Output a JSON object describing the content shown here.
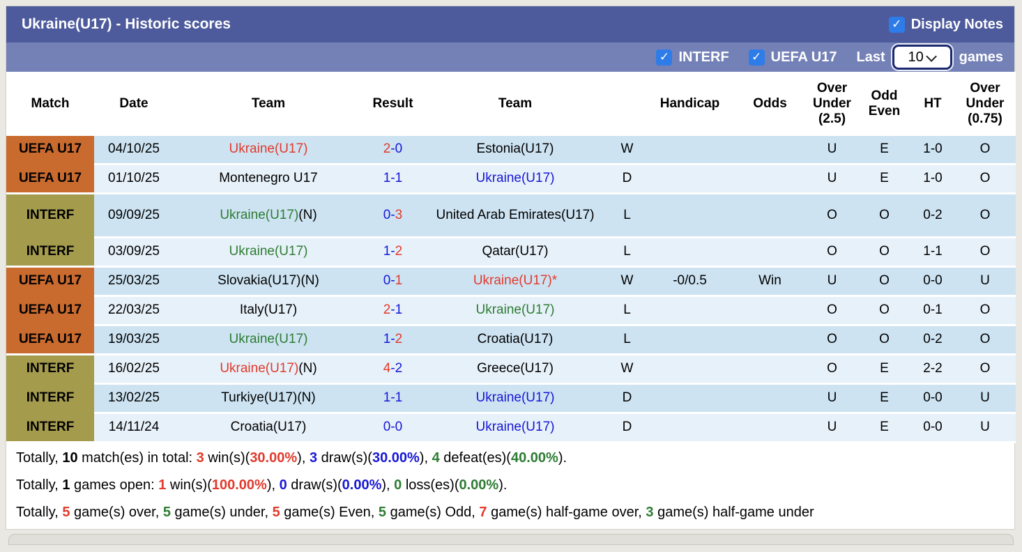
{
  "header": {
    "title": "Ukraine(U17) - Historic scores",
    "display_notes_label": "Display Notes",
    "display_notes_checked": true
  },
  "filter_bar": {
    "checkboxes": [
      {
        "label": "INTERF",
        "checked": true
      },
      {
        "label": "UEFA U17",
        "checked": true
      }
    ],
    "last_label": "Last",
    "games_count": "10",
    "games_label": "games"
  },
  "colors": {
    "title_bar": "#4d5b9c",
    "filter_bar": "#7481b6",
    "checkbox_blue": "#2e7ce8",
    "badge_uefa_orange": "#c96a2e",
    "badge_interf_olive": "#a49b4d",
    "row_dark": "#cde3f2",
    "row_light": "#e7f1f9",
    "win_red": "#e13a2c",
    "draw_blue": "#1717d6",
    "loss_green": "#2e7c33"
  },
  "table": {
    "header_cells": [
      {
        "lines": [
          "Match"
        ]
      },
      {
        "lines": [
          "Date"
        ]
      },
      {
        "lines": [
          "Team"
        ]
      },
      {
        "lines": [
          "Result"
        ]
      },
      {
        "lines": [
          "Team"
        ]
      },
      {
        "lines": [
          ""
        ]
      },
      {
        "lines": [
          "Handicap"
        ]
      },
      {
        "lines": [
          "Odds"
        ]
      },
      {
        "lines": [
          "Over",
          "Under",
          "(2.5)"
        ]
      },
      {
        "lines": [
          "Odd",
          "Even"
        ]
      },
      {
        "lines": [
          "HT"
        ]
      },
      {
        "lines": [
          "Over",
          "Under",
          "(0.75)"
        ]
      }
    ],
    "rows": [
      {
        "badge": {
          "label": "UEFA U17",
          "type": "uefa",
          "join_next": true
        },
        "date": "04/10/25",
        "team1": [
          {
            "text": "Ukraine(U17)",
            "color": "red"
          }
        ],
        "result": [
          {
            "text": "2",
            "color": "red"
          },
          {
            "text": "-0",
            "color": "blue"
          }
        ],
        "team2": [
          {
            "text": "Estonia(U17)",
            "color": "black"
          }
        ],
        "wdl": {
          "text": "W",
          "color": "red"
        },
        "handicap": "",
        "odds": {
          "text": "",
          "color": "red"
        },
        "ou25": {
          "text": "U",
          "color": "green"
        },
        "oddeven": {
          "text": "E",
          "color": "red"
        },
        "ht": "1-0",
        "ou075": {
          "text": "O",
          "color": "red"
        }
      },
      {
        "badge": {
          "label": "UEFA U17",
          "type": "uefa",
          "join_next": false
        },
        "date": "01/10/25",
        "team1": [
          {
            "text": "Montenegro U17",
            "color": "black"
          }
        ],
        "result": [
          {
            "text": "1-1",
            "color": "blue"
          }
        ],
        "team2": [
          {
            "text": "Ukraine(U17)",
            "color": "blue"
          }
        ],
        "wdl": {
          "text": "D",
          "color": "blue"
        },
        "handicap": "",
        "odds": {
          "text": "",
          "color": "red"
        },
        "ou25": {
          "text": "U",
          "color": "green"
        },
        "oddeven": {
          "text": "E",
          "color": "red"
        },
        "ht": "1-0",
        "ou075": {
          "text": "O",
          "color": "red"
        }
      },
      {
        "badge": {
          "label": "INTERF",
          "type": "interf",
          "join_next": true
        },
        "date": "09/09/25",
        "team1": [
          {
            "text": "Ukraine(U17)",
            "color": "green"
          },
          {
            "text": "(N)",
            "color": "black"
          }
        ],
        "result": [
          {
            "text": "0-",
            "color": "blue"
          },
          {
            "text": "3",
            "color": "red"
          }
        ],
        "team2": [
          {
            "text": "United Arab Emirates(U17)",
            "color": "black"
          }
        ],
        "wdl": {
          "text": "L",
          "color": "green"
        },
        "handicap": "",
        "odds": {
          "text": "",
          "color": "red"
        },
        "ou25": {
          "text": "O",
          "color": "red"
        },
        "oddeven": {
          "text": "O",
          "color": "green"
        },
        "ht": "0-2",
        "ou075": {
          "text": "O",
          "color": "red"
        }
      },
      {
        "badge": {
          "label": "INTERF",
          "type": "interf",
          "join_next": false
        },
        "date": "03/09/25",
        "team1": [
          {
            "text": "Ukraine(U17)",
            "color": "green"
          }
        ],
        "result": [
          {
            "text": "1-",
            "color": "blue"
          },
          {
            "text": "2",
            "color": "red"
          }
        ],
        "team2": [
          {
            "text": "Qatar(U17)",
            "color": "black"
          }
        ],
        "wdl": {
          "text": "L",
          "color": "green"
        },
        "handicap": "",
        "odds": {
          "text": "",
          "color": "red"
        },
        "ou25": {
          "text": "O",
          "color": "red"
        },
        "oddeven": {
          "text": "O",
          "color": "green"
        },
        "ht": "1-1",
        "ou075": {
          "text": "O",
          "color": "red"
        }
      },
      {
        "badge": {
          "label": "UEFA U17",
          "type": "uefa",
          "join_next": true
        },
        "date": "25/03/25",
        "team1": [
          {
            "text": "Slovakia(U17)(N)",
            "color": "black"
          }
        ],
        "result": [
          {
            "text": "0-",
            "color": "blue"
          },
          {
            "text": "1",
            "color": "red"
          }
        ],
        "team2": [
          {
            "text": "Ukraine(U17)*",
            "color": "red"
          }
        ],
        "wdl": {
          "text": "W",
          "color": "red"
        },
        "handicap": "-0/0.5",
        "odds": {
          "text": "Win",
          "color": "red"
        },
        "ou25": {
          "text": "U",
          "color": "green"
        },
        "oddeven": {
          "text": "O",
          "color": "green"
        },
        "ht": "0-0",
        "ou075": {
          "text": "U",
          "color": "green"
        }
      },
      {
        "badge": {
          "label": "UEFA U17",
          "type": "uefa",
          "join_next": true
        },
        "date": "22/03/25",
        "team1": [
          {
            "text": "Italy(U17)",
            "color": "black"
          }
        ],
        "result": [
          {
            "text": "2",
            "color": "red"
          },
          {
            "text": "-1",
            "color": "blue"
          }
        ],
        "team2": [
          {
            "text": "Ukraine(U17)",
            "color": "green"
          }
        ],
        "wdl": {
          "text": "L",
          "color": "green"
        },
        "handicap": "",
        "odds": {
          "text": "",
          "color": "red"
        },
        "ou25": {
          "text": "O",
          "color": "red"
        },
        "oddeven": {
          "text": "O",
          "color": "green"
        },
        "ht": "0-1",
        "ou075": {
          "text": "O",
          "color": "red"
        }
      },
      {
        "badge": {
          "label": "UEFA U17",
          "type": "uefa",
          "join_next": false
        },
        "date": "19/03/25",
        "team1": [
          {
            "text": "Ukraine(U17)",
            "color": "green"
          }
        ],
        "result": [
          {
            "text": "1-",
            "color": "blue"
          },
          {
            "text": "2",
            "color": "red"
          }
        ],
        "team2": [
          {
            "text": "Croatia(U17)",
            "color": "black"
          }
        ],
        "wdl": {
          "text": "L",
          "color": "green"
        },
        "handicap": "",
        "odds": {
          "text": "",
          "color": "red"
        },
        "ou25": {
          "text": "O",
          "color": "red"
        },
        "oddeven": {
          "text": "O",
          "color": "green"
        },
        "ht": "0-2",
        "ou075": {
          "text": "O",
          "color": "red"
        }
      },
      {
        "badge": {
          "label": "INTERF",
          "type": "interf",
          "join_next": true
        },
        "date": "16/02/25",
        "team1": [
          {
            "text": "Ukraine(U17)",
            "color": "red"
          },
          {
            "text": "(N)",
            "color": "black"
          }
        ],
        "result": [
          {
            "text": "4",
            "color": "red"
          },
          {
            "text": "-2",
            "color": "blue"
          }
        ],
        "team2": [
          {
            "text": "Greece(U17)",
            "color": "black"
          }
        ],
        "wdl": {
          "text": "W",
          "color": "red"
        },
        "handicap": "",
        "odds": {
          "text": "",
          "color": "red"
        },
        "ou25": {
          "text": "O",
          "color": "red"
        },
        "oddeven": {
          "text": "E",
          "color": "red"
        },
        "ht": "2-2",
        "ou075": {
          "text": "O",
          "color": "red"
        }
      },
      {
        "badge": {
          "label": "INTERF",
          "type": "interf",
          "join_next": true
        },
        "date": "13/02/25",
        "team1": [
          {
            "text": "Turkiye(U17)(N)",
            "color": "black"
          }
        ],
        "result": [
          {
            "text": "1-1",
            "color": "blue"
          }
        ],
        "team2": [
          {
            "text": "Ukraine(U17)",
            "color": "blue"
          }
        ],
        "wdl": {
          "text": "D",
          "color": "blue"
        },
        "handicap": "",
        "odds": {
          "text": "",
          "color": "red"
        },
        "ou25": {
          "text": "U",
          "color": "green"
        },
        "oddeven": {
          "text": "E",
          "color": "red"
        },
        "ht": "0-0",
        "ou075": {
          "text": "U",
          "color": "green"
        }
      },
      {
        "badge": {
          "label": "INTERF",
          "type": "interf",
          "join_next": false
        },
        "date": "14/11/24",
        "team1": [
          {
            "text": "Croatia(U17)",
            "color": "black"
          }
        ],
        "result": [
          {
            "text": "0-0",
            "color": "blue"
          }
        ],
        "team2": [
          {
            "text": "Ukraine(U17)",
            "color": "blue"
          }
        ],
        "wdl": {
          "text": "D",
          "color": "blue"
        },
        "handicap": "",
        "odds": {
          "text": "",
          "color": "red"
        },
        "ou25": {
          "text": "U",
          "color": "green"
        },
        "oddeven": {
          "text": "E",
          "color": "red"
        },
        "ht": "0-0",
        "ou075": {
          "text": "U",
          "color": "green"
        }
      }
    ]
  },
  "summary": [
    {
      "segments": [
        {
          "text": "Totally, "
        },
        {
          "text": "10",
          "bold": true
        },
        {
          "text": " match(es) in total: "
        },
        {
          "text": "3",
          "color": "red",
          "bold": true
        },
        {
          "text": " win(s)("
        },
        {
          "text": "30.00%",
          "color": "red",
          "bold": true
        },
        {
          "text": "), "
        },
        {
          "text": "3",
          "color": "blue",
          "bold": true
        },
        {
          "text": " draw(s)("
        },
        {
          "text": "30.00%",
          "color": "blue",
          "bold": true
        },
        {
          "text": "), "
        },
        {
          "text": "4",
          "color": "green",
          "bold": true
        },
        {
          "text": " defeat(es)("
        },
        {
          "text": "40.00%",
          "color": "green",
          "bold": true
        },
        {
          "text": ")."
        }
      ]
    },
    {
      "segments": [
        {
          "text": "Totally, "
        },
        {
          "text": "1",
          "bold": true
        },
        {
          "text": " games open: "
        },
        {
          "text": "1",
          "color": "red",
          "bold": true
        },
        {
          "text": " win(s)("
        },
        {
          "text": "100.00%",
          "color": "red",
          "bold": true
        },
        {
          "text": "), "
        },
        {
          "text": "0",
          "color": "blue",
          "bold": true
        },
        {
          "text": " draw(s)("
        },
        {
          "text": "0.00%",
          "color": "blue",
          "bold": true
        },
        {
          "text": "), "
        },
        {
          "text": "0",
          "color": "green",
          "bold": true
        },
        {
          "text": " loss(es)("
        },
        {
          "text": "0.00%",
          "color": "green",
          "bold": true
        },
        {
          "text": ")."
        }
      ]
    },
    {
      "segments": [
        {
          "text": "Totally, "
        },
        {
          "text": "5",
          "color": "red",
          "bold": true
        },
        {
          "text": " game(s) over, "
        },
        {
          "text": "5",
          "color": "green",
          "bold": true
        },
        {
          "text": " game(s) under, "
        },
        {
          "text": "5",
          "color": "red",
          "bold": true
        },
        {
          "text": " game(s) Even, "
        },
        {
          "text": "5",
          "color": "green",
          "bold": true
        },
        {
          "text": " game(s) Odd, "
        },
        {
          "text": "7",
          "color": "red",
          "bold": true
        },
        {
          "text": " game(s) half-game over, "
        },
        {
          "text": "3",
          "color": "green",
          "bold": true
        },
        {
          "text": " game(s) half-game under"
        }
      ]
    }
  ]
}
